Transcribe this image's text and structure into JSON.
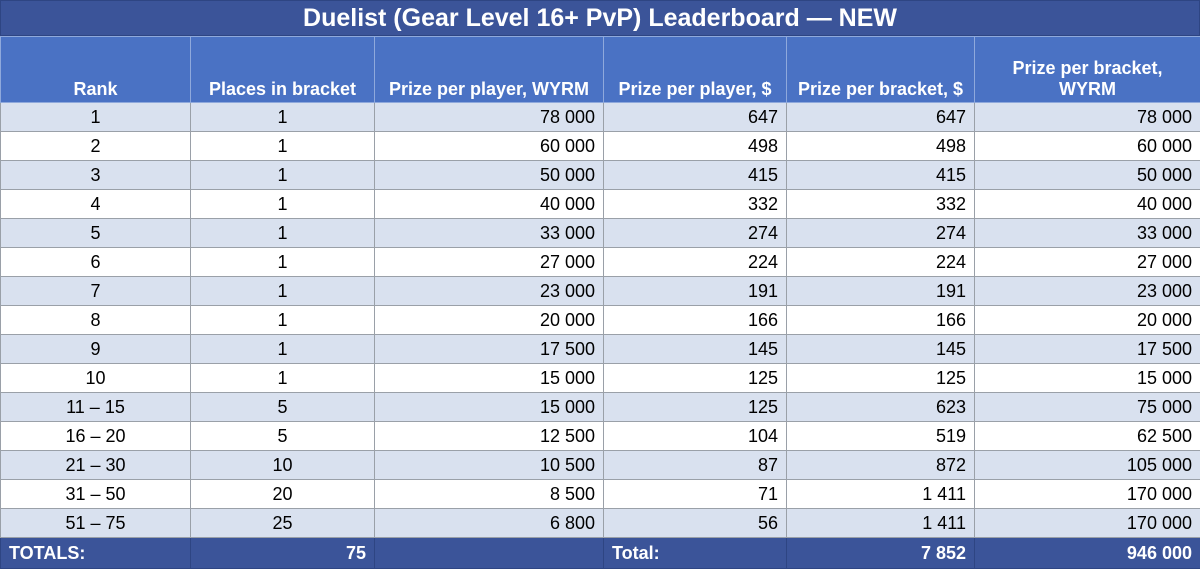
{
  "title": "Duelist (Gear Level 16+ PvP) Leaderboard — NEW",
  "headers": [
    "Rank",
    "Places in bracket",
    "Prize per player, WYRM",
    "Prize per player, $",
    "Prize per bracket, $",
    "Prize per bracket, WYRM"
  ],
  "rows": [
    [
      "1",
      "1",
      "78 000",
      "647",
      "647",
      "78 000"
    ],
    [
      "2",
      "1",
      "60 000",
      "498",
      "498",
      "60 000"
    ],
    [
      "3",
      "1",
      "50 000",
      "415",
      "415",
      "50 000"
    ],
    [
      "4",
      "1",
      "40 000",
      "332",
      "332",
      "40 000"
    ],
    [
      "5",
      "1",
      "33 000",
      "274",
      "274",
      "33 000"
    ],
    [
      "6",
      "1",
      "27 000",
      "224",
      "224",
      "27 000"
    ],
    [
      "7",
      "1",
      "23 000",
      "191",
      "191",
      "23 000"
    ],
    [
      "8",
      "1",
      "20 000",
      "166",
      "166",
      "20 000"
    ],
    [
      "9",
      "1",
      "17 500",
      "145",
      "145",
      "17 500"
    ],
    [
      "10",
      "1",
      "15 000",
      "125",
      "125",
      "15 000"
    ],
    [
      "11 – 15",
      "5",
      "15 000",
      "125",
      "623",
      "75 000"
    ],
    [
      "16 – 20",
      "5",
      "12 500",
      "104",
      "519",
      "62 500"
    ],
    [
      "21 – 30",
      "10",
      "10 500",
      "87",
      "872",
      "105 000"
    ],
    [
      "31 – 50",
      "20",
      "8 500",
      "71",
      "1 411",
      "170 000"
    ],
    [
      "51 – 75",
      "25",
      "6 800",
      "56",
      "1 411",
      "170 000"
    ]
  ],
  "totals": [
    "TOTALS:",
    "75",
    "",
    "Total:",
    "7 852",
    "946 000"
  ],
  "colors": {
    "title_bg": "#3b5499",
    "header_bg": "#4a72c4",
    "band_row": "#d9e1ef",
    "totals_bg": "#3b5499"
  }
}
